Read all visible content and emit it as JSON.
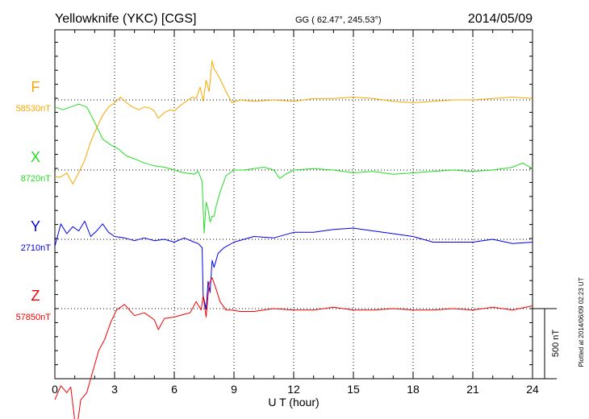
{
  "header": {
    "station": "Yellowknife (YKC)  [CGS]",
    "coords": "GG ( 62.47°, 245.53°)",
    "date": "2014/05/09"
  },
  "chart_data": {
    "type": "line",
    "xlabel": "U T (hour)",
    "xlim": [
      0,
      24
    ],
    "x_ticks": [
      "0",
      "3",
      "6",
      "9",
      "12",
      "15",
      "18",
      "21",
      "24"
    ],
    "scale_bar": "500 nT",
    "scale_bar_nT": 500,
    "plot_credit": "Plotted at 2014/06/09 02:23 UT",
    "series": [
      {
        "name": "F",
        "base": "58530nT",
        "color": "#f5a800",
        "x": [
          0,
          0.3,
          0.6,
          0.9,
          1.2,
          1.5,
          1.8,
          2.1,
          2.4,
          2.7,
          3.0,
          3.3,
          3.6,
          3.9,
          4.2,
          4.5,
          4.8,
          5.0,
          5.2,
          5.5,
          5.8,
          6.0,
          6.3,
          6.6,
          6.9,
          7.1,
          7.3,
          7.45,
          7.6,
          7.75,
          7.9,
          8.0,
          8.1,
          8.3,
          8.6,
          8.9,
          9.3,
          10,
          11,
          12,
          13,
          14,
          15,
          16,
          17,
          18,
          19,
          20,
          21,
          22,
          23,
          24
        ],
        "y": [
          -550,
          -550,
          -520,
          -600,
          -520,
          -430,
          -300,
          -200,
          -110,
          -50,
          -20,
          20,
          -20,
          -50,
          -70,
          -50,
          -60,
          -80,
          -130,
          -90,
          -70,
          -80,
          -40,
          -10,
          20,
          10,
          90,
          -10,
          140,
          60,
          280,
          220,
          200,
          150,
          60,
          -20,
          0,
          -10,
          0,
          -10,
          10,
          10,
          20,
          10,
          -10,
          -20,
          -10,
          0,
          0,
          10,
          20,
          10
        ]
      },
      {
        "name": "X",
        "base": "8720nT",
        "color": "#22dd22",
        "x": [
          0,
          0.4,
          0.8,
          1.2,
          1.6,
          2.0,
          2.4,
          2.8,
          3.2,
          3.6,
          4.0,
          4.5,
          5.0,
          5.5,
          6.0,
          6.5,
          7.0,
          7.2,
          7.4,
          7.5,
          7.6,
          7.7,
          7.8,
          7.9,
          8.0,
          8.1,
          8.3,
          8.6,
          9.0,
          9.5,
          10,
          10.5,
          11,
          11.3,
          11.6,
          12,
          13,
          14,
          15,
          16,
          17,
          18,
          19,
          20,
          21,
          22,
          23,
          23.5,
          24
        ],
        "y": [
          450,
          430,
          450,
          470,
          450,
          340,
          220,
          180,
          150,
          100,
          80,
          50,
          30,
          20,
          0,
          -20,
          -30,
          -10,
          -80,
          -450,
          -230,
          -280,
          -370,
          -330,
          -330,
          -260,
          -160,
          -40,
          0,
          0,
          10,
          20,
          0,
          -60,
          -30,
          0,
          10,
          0,
          -20,
          -10,
          -30,
          -20,
          -10,
          0,
          -10,
          0,
          20,
          50,
          10
        ]
      },
      {
        "name": "Y",
        "base": "2710nT",
        "color": "#0000ee",
        "x": [
          0,
          0.3,
          0.6,
          0.9,
          1.2,
          1.5,
          1.8,
          2.1,
          2.4,
          2.7,
          3.0,
          3.5,
          4.0,
          4.5,
          5.0,
          5.5,
          6.0,
          6.5,
          7.0,
          7.2,
          7.4,
          7.45,
          7.6,
          7.7,
          7.8,
          7.9,
          8.0,
          8.2,
          8.5,
          9.0,
          10,
          11,
          12,
          13,
          14,
          15,
          16,
          17,
          18,
          19,
          20,
          21,
          22,
          23,
          24
        ],
        "y": [
          -50,
          110,
          40,
          90,
          60,
          130,
          20,
          60,
          110,
          50,
          20,
          10,
          -10,
          10,
          -10,
          0,
          -20,
          10,
          -20,
          -30,
          -60,
          -400,
          -500,
          -300,
          -380,
          -150,
          -200,
          -100,
          -60,
          -20,
          20,
          10,
          50,
          50,
          70,
          80,
          60,
          40,
          20,
          -20,
          -20,
          -20,
          0,
          -30,
          -20
        ]
      },
      {
        "name": "Z",
        "base": "57850nT",
        "color": "#ee0000",
        "x": [
          0,
          0.3,
          0.6,
          0.8,
          1.0,
          1.1,
          1.3,
          1.6,
          1.9,
          2.2,
          2.5,
          2.8,
          3.1,
          3.5,
          4.0,
          4.5,
          5.0,
          5.2,
          5.5,
          6.0,
          6.5,
          6.8,
          7.1,
          7.35,
          7.45,
          7.6,
          7.75,
          7.9,
          8.1,
          8.3,
          8.6,
          8.9,
          9.3,
          10,
          11,
          12,
          13,
          14,
          15,
          16,
          17,
          18,
          19,
          20,
          21,
          22,
          23,
          24
        ],
        "y": [
          -650,
          -550,
          -600,
          -560,
          -800,
          -860,
          -650,
          -600,
          -450,
          -300,
          -220,
          -100,
          -10,
          30,
          -50,
          -30,
          -80,
          -150,
          -70,
          -60,
          -40,
          -30,
          50,
          -10,
          90,
          -60,
          180,
          220,
          140,
          50,
          -10,
          -10,
          -20,
          -20,
          0,
          -10,
          -10,
          10,
          -10,
          -10,
          0,
          -10,
          -10,
          0,
          -10,
          10,
          -10,
          20
        ]
      }
    ]
  }
}
